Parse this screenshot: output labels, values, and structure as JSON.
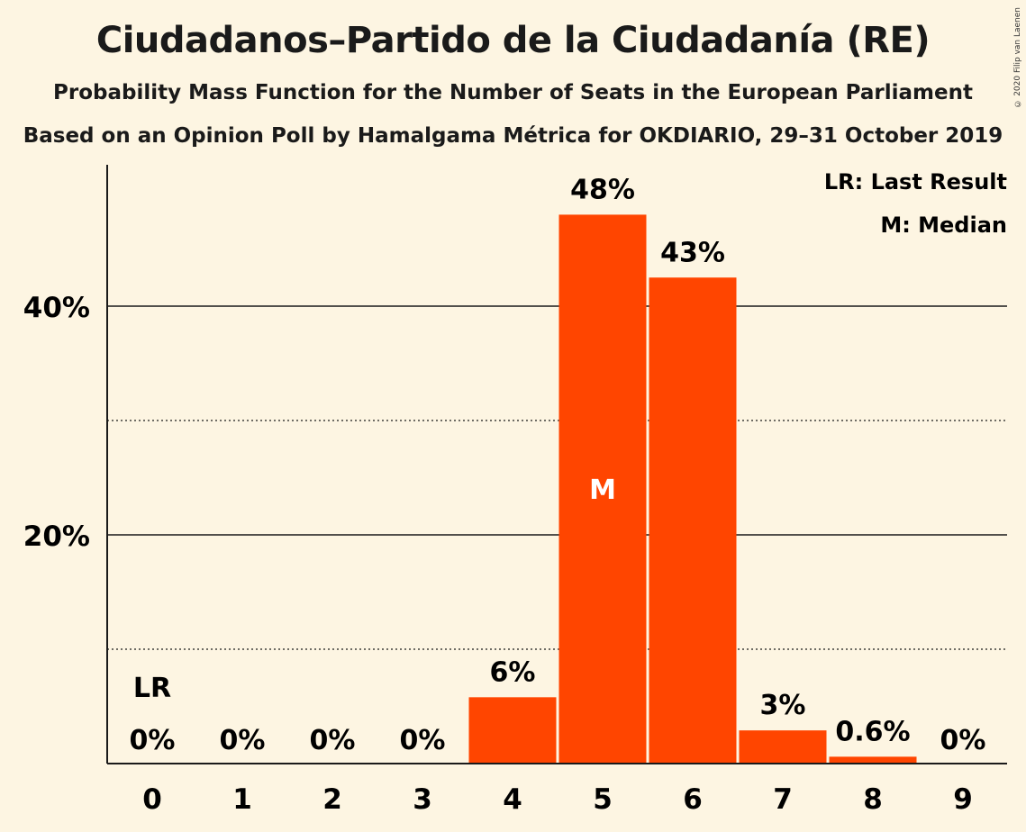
{
  "title": "Ciudadanos–Partido de la Ciudadanía (RE)",
  "subtitle": "Probability Mass Function for the Number of Seats in the European Parliament",
  "subtitle2": "Based on an Opinion Poll by Hamalgama Métrica for OKDIARIO, 29–31 October 2019",
  "copyright": "© 2020 Filip van Laenen",
  "colors": {
    "bar": "#ff4500",
    "background": "#fdf5e2",
    "text": "#1a1a1a"
  },
  "legend": {
    "last_result": "LR: Last Result",
    "median": "M: Median"
  },
  "chart_data": {
    "type": "bar",
    "categories": [
      "0",
      "1",
      "2",
      "3",
      "4",
      "5",
      "6",
      "7",
      "8",
      "9"
    ],
    "values": [
      0,
      0,
      0,
      0,
      5.8,
      48.0,
      42.5,
      2.9,
      0.6,
      0
    ],
    "value_labels": [
      "0%",
      "0%",
      "0%",
      "0%",
      "6%",
      "48%",
      "43%",
      "3%",
      "0.6%",
      "0%"
    ],
    "ylim": [
      0,
      52
    ],
    "yticks": [
      20,
      40
    ],
    "ytick_labels": [
      "20%",
      "40%"
    ],
    "minor_gridlines": [
      10,
      30
    ],
    "last_result_category": "0",
    "last_result_marker": "LR",
    "median_category": "5",
    "median_marker": "M",
    "legend_position": "top-right",
    "grid": true
  }
}
